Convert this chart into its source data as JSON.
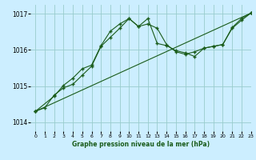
{
  "title": "Graphe pression niveau de la mer (hPa)",
  "bg_color": "#cceeff",
  "grid_color": "#99cccc",
  "line_color": "#1a5c1a",
  "x_min": -0.5,
  "x_max": 23,
  "y_min": 1013.75,
  "y_max": 1017.25,
  "y_ticks": [
    1014,
    1015,
    1016,
    1017
  ],
  "x_ticks": [
    0,
    1,
    2,
    3,
    4,
    5,
    6,
    7,
    8,
    9,
    10,
    11,
    12,
    13,
    14,
    15,
    16,
    17,
    18,
    19,
    20,
    21,
    22,
    23
  ],
  "line1_x": [
    0,
    1,
    2,
    3,
    4,
    5,
    6,
    7,
    8,
    9,
    10,
    11,
    12,
    13,
    14,
    15,
    16,
    17,
    18,
    19,
    20,
    21,
    22,
    23
  ],
  "line1_y": [
    1014.3,
    1014.4,
    1014.75,
    1014.95,
    1015.05,
    1015.3,
    1015.55,
    1016.1,
    1016.35,
    1016.6,
    1016.87,
    1016.65,
    1016.72,
    1016.6,
    1016.15,
    1015.95,
    1015.88,
    1015.95,
    1016.05,
    1016.1,
    1016.15,
    1016.6,
    1016.82,
    1017.02
  ],
  "line2_x": [
    0,
    2,
    3,
    4,
    5,
    6,
    7,
    8,
    9,
    10,
    11,
    12,
    13,
    14,
    15,
    16,
    17,
    18,
    19,
    20,
    21,
    22,
    23
  ],
  "line2_y": [
    1014.3,
    1014.72,
    1015.02,
    1015.22,
    1015.48,
    1015.58,
    1016.12,
    1016.52,
    1016.72,
    1016.87,
    1016.65,
    1016.87,
    1016.18,
    1016.12,
    1015.98,
    1015.92,
    1015.82,
    1016.05,
    1016.1,
    1016.15,
    1016.62,
    1016.87,
    1017.02
  ],
  "line3_x": [
    0,
    23
  ],
  "line3_y": [
    1014.3,
    1017.02
  ]
}
